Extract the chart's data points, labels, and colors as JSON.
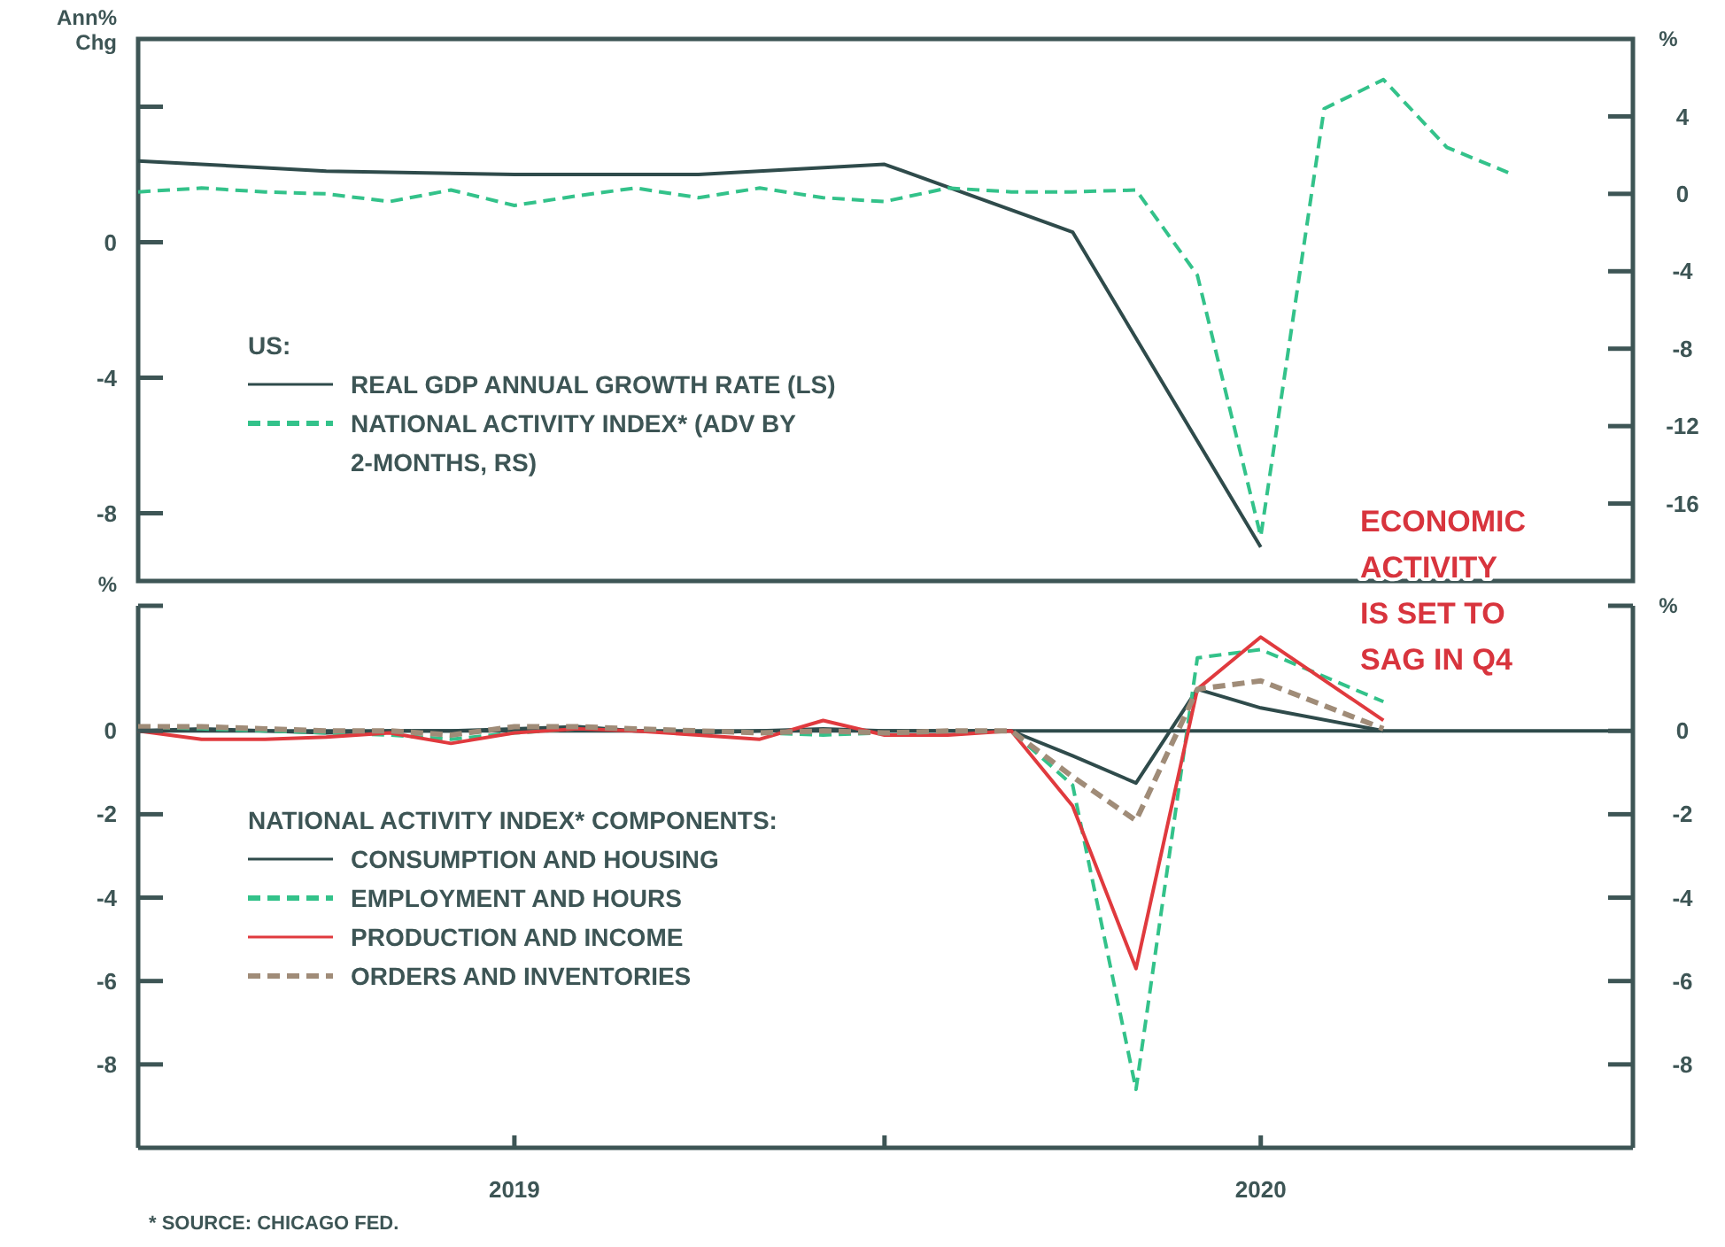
{
  "chart_data": [
    {
      "type": "line",
      "ylabel": "Ann% Chg",
      "y2label": "%",
      "legend_title": "US:",
      "legend": "bottom left",
      "tick_labels": "y",
      "xlim": [
        "2018-07",
        "2020-07"
      ],
      "ylim": [
        -10,
        6
      ],
      "yticks": [
        {
          "value": 4,
          "label": null
        },
        0,
        -4,
        -8
      ],
      "y2lim": [
        -20,
        8
      ],
      "y2ticks": [
        4,
        0,
        -4,
        -8,
        -12,
        -16
      ],
      "series": [
        {
          "name": "REAL GDP ANNUAL GROWTH RATE (LS)",
          "color": "#2f4b4b",
          "line_style": "solid",
          "x": [
            "2018-07",
            "2018-10",
            "2019-01",
            "2019-04",
            "2019-07",
            "2019-10",
            "2020-01"
          ],
          "values": [
            2.4,
            2.1,
            2.0,
            2.0,
            2.3,
            0.3,
            -9.0
          ]
        },
        {
          "name": "NATIONAL ACTIVITY INDEX* (ADV BY 2-MONTHS, RS)",
          "color": "#33c28a",
          "line_style": "dashed",
          "axis": "y2",
          "x": [
            "2018-07",
            "2018-08",
            "2018-09",
            "2018-10",
            "2018-11",
            "2018-12",
            "2019-01",
            "2019-02",
            "2019-03",
            "2019-04",
            "2019-05",
            "2019-06",
            "2019-07",
            "2019-08",
            "2019-09",
            "2019-10",
            "2019-11",
            "2019-12",
            "2020-01",
            "2020-02",
            "2020-03",
            "2020-04",
            "2020-05"
          ],
          "values": [
            0.1,
            0.3,
            0.1,
            0.0,
            -0.4,
            0.2,
            -0.6,
            -0.1,
            0.3,
            -0.2,
            0.3,
            -0.2,
            -0.4,
            0.3,
            0.1,
            0.1,
            0.2,
            -4.2,
            -17.7,
            4.4,
            5.9,
            2.4,
            1.1
          ]
        }
      ],
      "annotations": [
        "ECONOMIC ACTIVITY IS SET TO SAG IN Q4"
      ]
    },
    {
      "type": "line",
      "ylabel": "%",
      "y2label": "%",
      "legend_title": "NATIONAL ACTIVITY INDEX* COMPONENTS:",
      "legend": "bottom left",
      "x": [
        "2018-07",
        "2018-08",
        "2018-09",
        "2018-10",
        "2018-11",
        "2018-12",
        "2019-01",
        "2019-02",
        "2019-03",
        "2019-04",
        "2019-05",
        "2019-06",
        "2019-07",
        "2019-08",
        "2019-09",
        "2019-10",
        "2019-11",
        "2019-12",
        "2020-01",
        "2020-03"
      ],
      "xlim": [
        "2018-07",
        "2020-07"
      ],
      "xticks": [
        {
          "value": "2019-01",
          "label": "2019"
        },
        {
          "value": "2019-07",
          "label": null
        },
        {
          "value": "2020-01",
          "label": "2020"
        }
      ],
      "ylim": [
        -10,
        3
      ],
      "yticks": [
        {
          "value": 3,
          "label": null
        },
        0,
        -2,
        -4,
        -6,
        -8
      ],
      "y2lim": [
        -10,
        3
      ],
      "y2ticks": [
        {
          "value": 3,
          "label": null
        },
        0,
        -2,
        -4,
        -6,
        -8
      ],
      "ref_lines": [
        {
          "axis": "y",
          "value": 0,
          "color": "#2f4b4b"
        }
      ],
      "series": [
        {
          "name": "CONSUMPTION AND HOUSING",
          "color": "#2f4b4b",
          "line_style": "solid",
          "values": [
            0,
            0.05,
            0,
            -0.05,
            0,
            0,
            0.05,
            0.1,
            0,
            -0.05,
            0,
            0.05,
            0,
            0,
            0,
            -0.6,
            -1.25,
            1.0,
            0.55,
            0
          ]
        },
        {
          "name": "EMPLOYMENT AND HOURS",
          "color": "#33c28a",
          "line_style": "dashed",
          "values": [
            0.1,
            0.05,
            0,
            -0.05,
            -0.1,
            -0.2,
            -0.05,
            0.05,
            0.05,
            0,
            -0.05,
            -0.1,
            -0.05,
            0,
            0,
            -1.3,
            -8.6,
            1.75,
            1.95,
            0.7
          ]
        },
        {
          "name": "PRODUCTION AND INCOME",
          "color": "#e03a3e",
          "line_style": "solid",
          "values": [
            0,
            -0.2,
            -0.2,
            -0.15,
            -0.05,
            -0.3,
            -0.05,
            0.05,
            0,
            -0.1,
            -0.2,
            0.25,
            -0.1,
            -0.1,
            0,
            -1.8,
            -5.7,
            1.0,
            2.25,
            0.25
          ]
        },
        {
          "name": "ORDERS AND INVENTORIES",
          "color": "#a08c78",
          "line_style": "dashed",
          "values": [
            0.1,
            0.1,
            0.05,
            0,
            0,
            -0.1,
            0.1,
            0.1,
            0.05,
            0,
            -0.05,
            0,
            -0.05,
            0,
            0,
            -1.1,
            -2.15,
            1.0,
            1.2,
            0.05
          ]
        }
      ],
      "annotations": [
        "* SOURCE: CHICAGO FED."
      ]
    }
  ]
}
